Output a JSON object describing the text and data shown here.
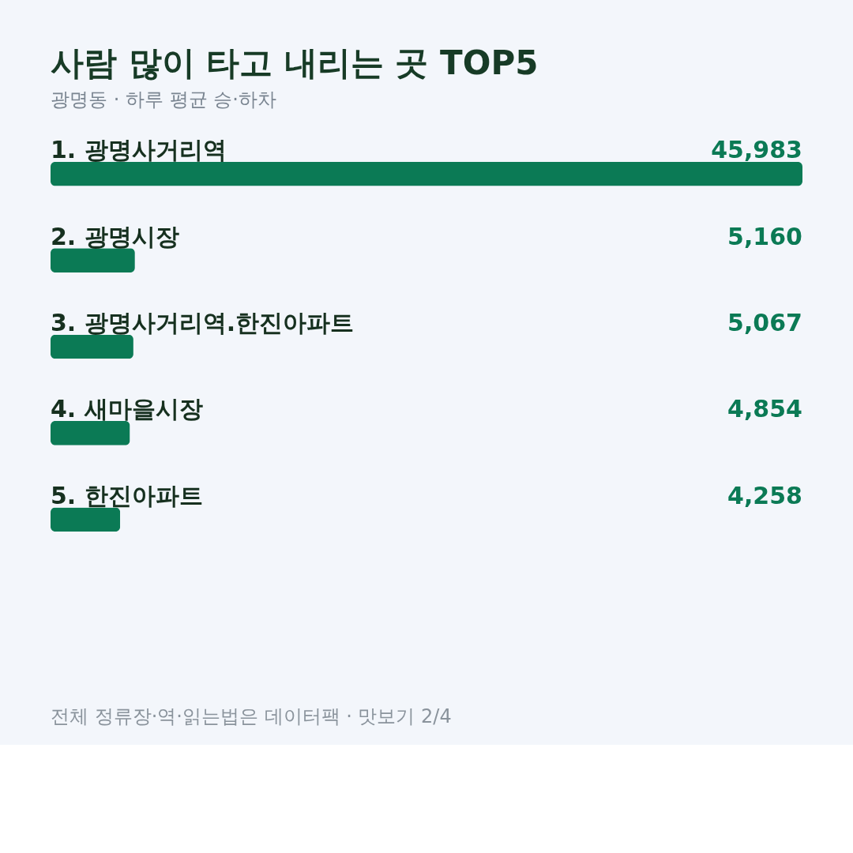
{
  "chart_data": {
    "type": "bar",
    "orientation": "horizontal",
    "title": "사람 많이 타고 내리는 곳 TOP5",
    "subtitle": "광명동 · 하루 평균 승·하차",
    "categories": [
      "1.  광명사거리역",
      "2.  광명시장",
      "3.  광명사거리역.한진아파트",
      "4.  새마을시장",
      "5.  한진아파트"
    ],
    "values": [
      45983,
      5160,
      5067,
      4854,
      4258
    ],
    "color": "#0b7a55",
    "value_labels": [
      "45,983",
      "5,160",
      "5,067",
      "4,854",
      "4,258"
    ],
    "annotations": [
      "전체 정류장·역·읽는법은 데이터팩 · 맛보기 2/4"
    ]
  }
}
